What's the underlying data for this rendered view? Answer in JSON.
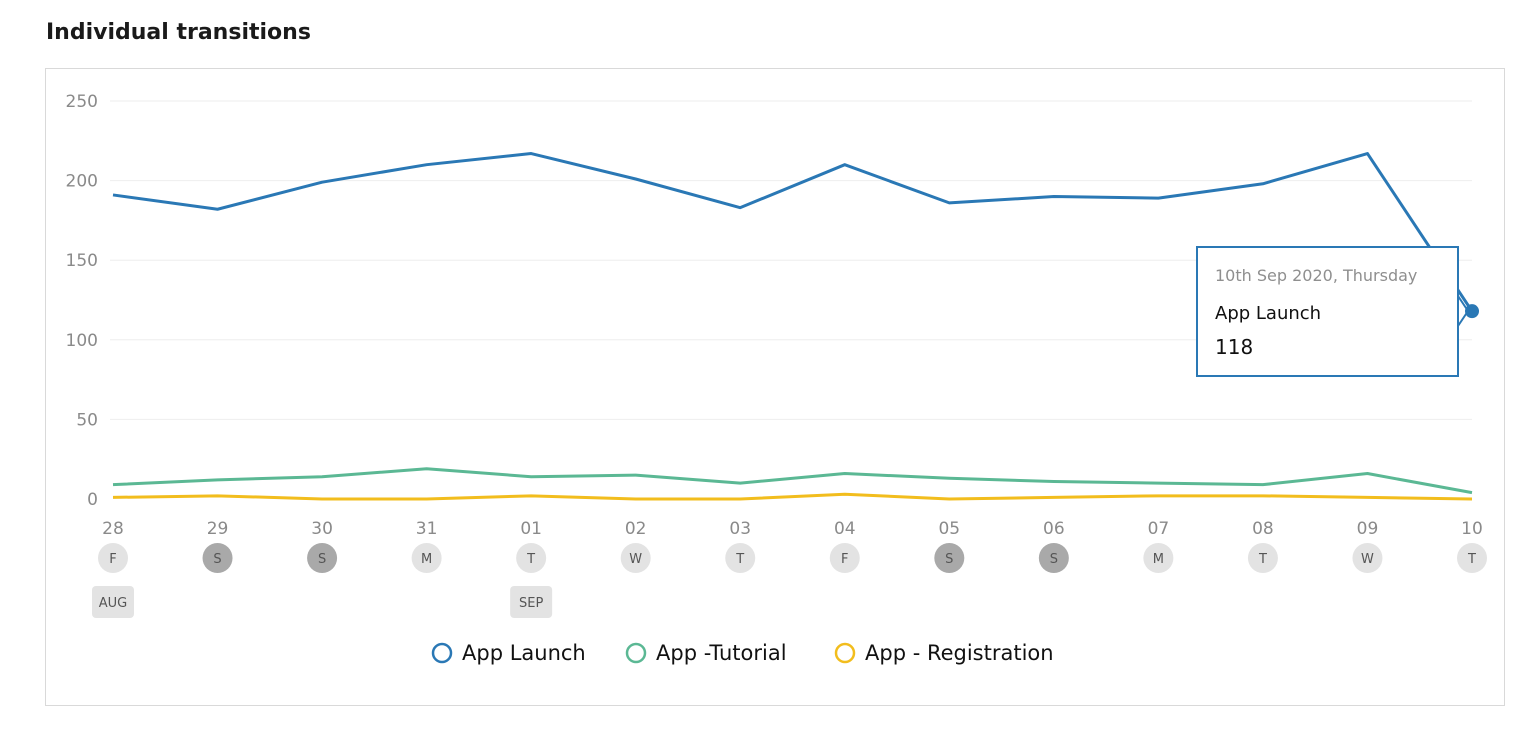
{
  "header": {
    "title": "Individual transitions"
  },
  "chart_data": {
    "type": "line",
    "categories": [
      "28",
      "29",
      "30",
      "31",
      "01",
      "02",
      "03",
      "04",
      "05",
      "06",
      "07",
      "08",
      "09",
      "10"
    ],
    "day_labels": [
      "F",
      "S",
      "S",
      "M",
      "T",
      "W",
      "T",
      "F",
      "S",
      "S",
      "M",
      "T",
      "W",
      "T"
    ],
    "month_labels": [
      {
        "index": 0,
        "label": "AUG"
      },
      {
        "index": 4,
        "label": "SEP"
      }
    ],
    "weekend_indices": [
      1,
      2,
      8,
      9
    ],
    "y_ticks": [
      0,
      50,
      100,
      150,
      200,
      250
    ],
    "ylim": [
      0,
      250
    ],
    "grid": true,
    "legend_position": "bottom-center",
    "series": [
      {
        "name": "App Launch",
        "color": "#2a78b5",
        "values": [
          191,
          182,
          199,
          210,
          217,
          201,
          183,
          210,
          186,
          190,
          189,
          198,
          217,
          118
        ]
      },
      {
        "name": "App -Tutorial",
        "color": "#5bb894",
        "values": [
          9,
          12,
          14,
          19,
          14,
          15,
          10,
          16,
          13,
          11,
          10,
          9,
          16,
          4
        ]
      },
      {
        "name": "App - Registration",
        "color": "#f2bd1d",
        "values": [
          1,
          2,
          0,
          0,
          2,
          0,
          0,
          3,
          0,
          1,
          2,
          2,
          1,
          0
        ]
      }
    ],
    "tooltip": {
      "date": "10th Sep 2020, Thursday",
      "series": "App Launch",
      "value": "118",
      "point_index": 13
    }
  }
}
